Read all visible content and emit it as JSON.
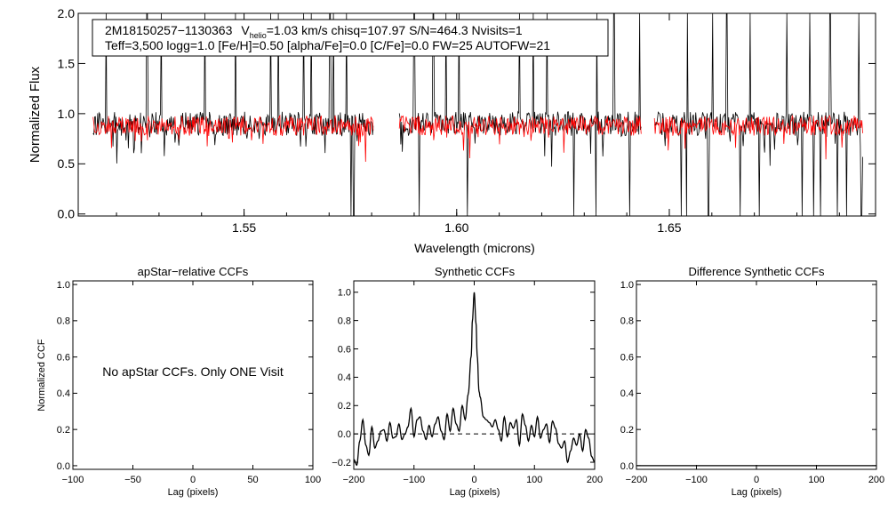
{
  "top_panel": {
    "header_line1": {
      "star": "2M18150257−1130363",
      "v_sym": "V",
      "v_sub": "helio",
      "v_rest": "=1.03 km/s  chisq=107.97  S/N=464.3  Nvisits=1"
    },
    "header_line2": "Teff=3,500 logg=1.0 [Fe/H]=0.50 [alpha/Fe]=0.0 [C/Fe]=0.0 FW=25 AUTOFW=21"
  },
  "panel_ccf1": {
    "note": "No apStar CCFs.  Only ONE Visit"
  },
  "colors": {
    "observed": "#000000",
    "model": "#ff0000",
    "axes": "#000000"
  },
  "chart_data": [
    {
      "id": "spectrum",
      "type": "line",
      "title": "",
      "xlabel": "Wavelength (microns)",
      "ylabel": "Normalized Flux",
      "xlim": [
        1.511,
        1.6985
      ],
      "ylim": [
        -0.02,
        2.0
      ],
      "xticks": [
        1.55,
        1.6,
        1.65
      ],
      "xtick_labels": [
        "1.55",
        "1.60",
        "1.65"
      ],
      "yticks": [
        0.0,
        0.5,
        1.0,
        1.5,
        2.0
      ],
      "ytick_labels": [
        "0.0",
        "0.5",
        "1.0",
        "1.5",
        "2.0"
      ],
      "segments": [
        [
          1.5145,
          1.5805
        ],
        [
          1.5865,
          1.6435
        ],
        [
          1.6465,
          1.6955
        ]
      ],
      "series": [
        {
          "name": "observed",
          "color": "#000000",
          "baseline": 0.9,
          "noise": 0.12,
          "spikes_up": [
            1.5175,
            1.5272,
            1.5305,
            1.5408,
            1.548,
            1.5563,
            1.5581,
            1.564,
            1.5658,
            1.5702,
            1.571,
            1.5741,
            1.59,
            1.5945,
            1.5975,
            1.6005,
            1.6148,
            1.618,
            1.6212,
            1.633,
            1.637,
            1.643,
            1.6542,
            1.6602,
            1.6635,
            1.669,
            1.6712,
            1.6777,
            1.683,
            1.6878,
            1.6945
          ],
          "spikes_down": [
            1.5752,
            1.5758,
            1.5912,
            1.6025,
            1.6275,
            1.6328,
            1.6407,
            1.6528,
            1.654,
            1.6592,
            1.6667,
            1.6712,
            1.6812,
            1.684,
            1.6855,
            1.6895,
            1.6917,
            1.6952
          ]
        },
        {
          "name": "model",
          "color": "#ff0000",
          "baseline": 0.88,
          "noise": 0.1
        }
      ]
    },
    {
      "id": "apstar_ccf",
      "type": "line",
      "title": "apStar−relative CCFs",
      "xlabel": "Lag (pixels)",
      "ylabel": "Normalized CCF",
      "xlim": [
        -100,
        100
      ],
      "ylim": [
        -0.02,
        1.02
      ],
      "xticks": [
        -100,
        -50,
        0,
        50,
        100
      ],
      "xtick_labels": [
        "−100",
        "−50",
        "0",
        "50",
        "100"
      ],
      "yticks": [
        0.0,
        0.2,
        0.4,
        0.6,
        0.8,
        1.0
      ],
      "ytick_labels": [
        "0.0",
        "0.2",
        "0.4",
        "0.6",
        "0.8",
        "1.0"
      ],
      "series": []
    },
    {
      "id": "synthetic_ccf",
      "type": "line",
      "title": "Synthetic CCFs",
      "xlabel": "Lag (pixels)",
      "ylabel": "",
      "xlim": [
        -200,
        200
      ],
      "ylim": [
        -0.25,
        1.08
      ],
      "xticks": [
        -200,
        -100,
        0,
        100,
        200
      ],
      "xtick_labels": [
        "−200",
        "−100",
        "0",
        "100",
        "200"
      ],
      "yticks": [
        -0.2,
        0.0,
        0.2,
        0.4,
        0.6,
        0.8,
        1.0
      ],
      "ytick_labels": [
        "−0.2",
        "0.0",
        "0.2",
        "0.4",
        "0.6",
        "0.8",
        "1.0"
      ],
      "reference_line": 0.0,
      "series": [
        {
          "name": "ccf",
          "x": [
            -200,
            -195,
            -190,
            -185,
            -180,
            -175,
            -170,
            -165,
            -160,
            -155,
            -150,
            -145,
            -140,
            -135,
            -130,
            -125,
            -120,
            -115,
            -110,
            -105,
            -100,
            -95,
            -90,
            -85,
            -80,
            -75,
            -70,
            -65,
            -60,
            -55,
            -50,
            -45,
            -40,
            -35,
            -30,
            -25,
            -20,
            -15,
            -10,
            -5,
            -3,
            0,
            3,
            5,
            8,
            10,
            15,
            20,
            25,
            30,
            35,
            40,
            45,
            50,
            55,
            60,
            65,
            70,
            75,
            80,
            85,
            90,
            95,
            100,
            105,
            110,
            115,
            120,
            125,
            130,
            135,
            140,
            145,
            150,
            155,
            160,
            165,
            170,
            175,
            180,
            185,
            190,
            195,
            200
          ],
          "y": [
            -0.18,
            -0.22,
            -0.05,
            0.1,
            -0.08,
            -0.15,
            0.05,
            -0.1,
            -0.05,
            0.02,
            0.03,
            -0.05,
            0.08,
            -0.03,
            -0.02,
            0.07,
            -0.04,
            0.0,
            0.05,
            0.18,
            -0.02,
            0.1,
            0.12,
            0.02,
            -0.04,
            0.06,
            -0.02,
            0.07,
            0.12,
            0.02,
            -0.04,
            0.14,
            0.02,
            0.18,
            0.07,
            0.02,
            0.2,
            0.1,
            0.28,
            0.55,
            0.8,
            1.0,
            0.78,
            0.55,
            0.3,
            0.26,
            0.12,
            0.1,
            0.08,
            0.05,
            0.1,
            0.03,
            -0.05,
            0.12,
            -0.02,
            0.08,
            0.04,
            0.1,
            -0.08,
            0.14,
            0.06,
            -0.05,
            0.06,
            -0.02,
            0.12,
            -0.03,
            0.03,
            0.07,
            -0.06,
            0.09,
            0.04,
            -0.07,
            -0.1,
            -0.05,
            -0.2,
            -0.12,
            -0.03,
            -0.08,
            0.0,
            -0.12,
            0.03,
            -0.03,
            -0.16,
            -0.2
          ],
          "color": "#000000"
        }
      ]
    },
    {
      "id": "difference_ccf",
      "type": "line",
      "title": "Difference Synthetic CCFs",
      "xlabel": "Lag (pixels)",
      "ylabel": "",
      "xlim": [
        -200,
        200
      ],
      "ylim": [
        -0.02,
        1.02
      ],
      "xticks": [
        -200,
        -100,
        0,
        100,
        200
      ],
      "xtick_labels": [
        "−200",
        "−100",
        "0",
        "100",
        "200"
      ],
      "yticks": [
        0.0,
        0.2,
        0.4,
        0.6,
        0.8,
        1.0
      ],
      "ytick_labels": [
        "0.0",
        "0.2",
        "0.4",
        "0.6",
        "0.8",
        "1.0"
      ],
      "series": [
        {
          "name": "difference",
          "x": [
            -200,
            200
          ],
          "y": [
            0.0,
            0.0
          ],
          "color": "#000000"
        }
      ]
    }
  ]
}
